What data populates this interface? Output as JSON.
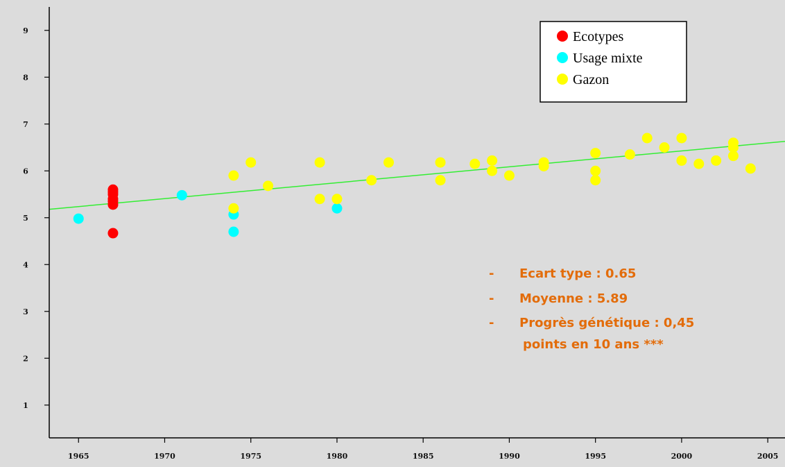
{
  "chart_data": {
    "type": "scatter",
    "title": "",
    "xlabel": "",
    "ylabel": "",
    "xlim": [
      1963.3,
      2006
    ],
    "ylim": [
      0.3,
      9.5
    ],
    "x_ticks": [
      1965,
      1970,
      1975,
      1980,
      1985,
      1990,
      1995,
      2000,
      2005
    ],
    "x_tick_labels": [
      "1965",
      "1970",
      "1975",
      "1980",
      "1985",
      "1990",
      "1995",
      "2000",
      "2005"
    ],
    "y_ticks": [
      1,
      2,
      3,
      4,
      5,
      6,
      7,
      8,
      9
    ],
    "y_tick_labels": [
      "1",
      "2",
      "3",
      "4",
      "5",
      "6",
      "7",
      "8",
      "9"
    ],
    "grid": false,
    "legend_position": "top-right",
    "colors": {
      "plot_background": "#dcdcdc",
      "Ecotypes": "#ff0000",
      "Usage mixte": "#00ffff",
      "Gazon": "#ffff00",
      "trend": "#33ee33",
      "stats_text": "#e36c0a"
    },
    "series": [
      {
        "name": "Ecotypes",
        "x": [
          1967,
          1967,
          1967,
          1967,
          1967,
          1967,
          1967
        ],
        "y": [
          5.6,
          5.55,
          5.5,
          5.4,
          5.35,
          5.28,
          4.67
        ]
      },
      {
        "name": "Usage mixte",
        "x": [
          1965,
          1971,
          1974,
          1974,
          1980
        ],
        "y": [
          4.98,
          5.48,
          5.07,
          4.7,
          5.2
        ]
      },
      {
        "name": "Gazon",
        "x": [
          1974,
          1974,
          1975,
          1976,
          1979,
          1979,
          1980,
          1982,
          1983,
          1986,
          1986,
          1988,
          1989,
          1989,
          1990,
          1992,
          1992,
          1995,
          1995,
          1995,
          1997,
          1998,
          1999,
          2000,
          2000,
          2001,
          2002,
          2003,
          2003,
          2003,
          2004
        ],
        "y": [
          5.9,
          5.2,
          6.18,
          5.68,
          6.18,
          5.4,
          5.4,
          5.8,
          6.18,
          6.18,
          5.8,
          6.15,
          6.22,
          6.0,
          5.9,
          6.18,
          6.1,
          6.38,
          6.0,
          5.8,
          6.35,
          6.7,
          6.5,
          6.7,
          6.22,
          6.15,
          6.22,
          6.6,
          6.5,
          6.32,
          6.05
        ]
      }
    ],
    "trend_line": {
      "x": [
        1963.3,
        2006
      ],
      "y": [
        5.18,
        6.63
      ]
    },
    "legend": [
      "Ecotypes",
      "Usage mixte",
      "Gazon"
    ],
    "annotations": {
      "bullet": "-",
      "line1": "Ecart type : 0.65",
      "line2": "Moyenne : 5.89",
      "line3": "Progrès génétique : 0,45",
      "line4": "points en 10 ans ***"
    }
  }
}
